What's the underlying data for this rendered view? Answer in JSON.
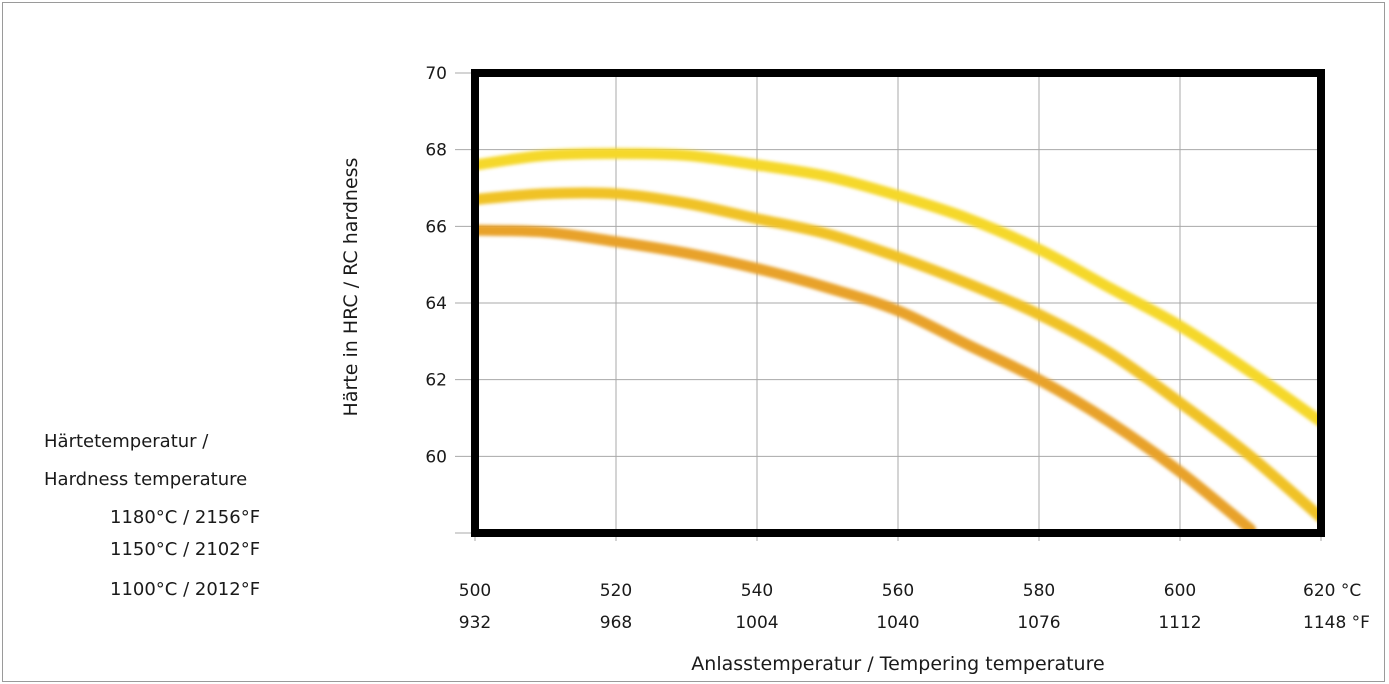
{
  "chart_data": {
    "type": "line",
    "ylabel": "Härte in HRC / RC hardness",
    "xlabel": "Anlasstemperatur / Tempering temperature",
    "ylim": [
      58,
      70
    ],
    "xlim": [
      500,
      620
    ],
    "y_ticks": [
      60,
      62,
      64,
      66,
      68,
      70
    ],
    "x_ticks_c": [
      "500",
      "520",
      "540",
      "560",
      "580",
      "600",
      "620"
    ],
    "x_ticks_f": [
      "932",
      "968",
      "1004",
      "1040",
      "1076",
      "1112",
      "1148"
    ],
    "x_unit_c": "°C",
    "x_unit_f": "°F",
    "grid": true,
    "legend_title": [
      "Härtetemperatur /",
      "Hardness temperature"
    ],
    "legend_position": "left",
    "series": [
      {
        "name": "1180°C / 2156°F",
        "color": "#f5d82a",
        "x": [
          500,
          510,
          520,
          530,
          540,
          550,
          560,
          570,
          580,
          590,
          600,
          610,
          620
        ],
        "y": [
          67.6,
          67.85,
          67.9,
          67.85,
          67.6,
          67.3,
          66.8,
          66.2,
          65.4,
          64.4,
          63.4,
          62.2,
          60.9
        ]
      },
      {
        "name": "1150°C / 2102°F",
        "color": "#f0c227",
        "x": [
          500,
          510,
          520,
          530,
          540,
          550,
          560,
          570,
          580,
          590,
          600,
          610,
          620
        ],
        "y": [
          66.7,
          66.85,
          66.85,
          66.6,
          66.2,
          65.8,
          65.2,
          64.5,
          63.7,
          62.7,
          61.4,
          60.0,
          58.4
        ]
      },
      {
        "name": "1100°C / 2012°F",
        "color": "#e8a22b",
        "x": [
          500,
          510,
          520,
          530,
          540,
          550,
          560,
          570,
          580,
          590,
          600,
          610
        ],
        "y": [
          65.9,
          65.85,
          65.6,
          65.3,
          64.9,
          64.4,
          63.8,
          62.9,
          62.0,
          60.9,
          59.6,
          58.1
        ]
      }
    ]
  }
}
